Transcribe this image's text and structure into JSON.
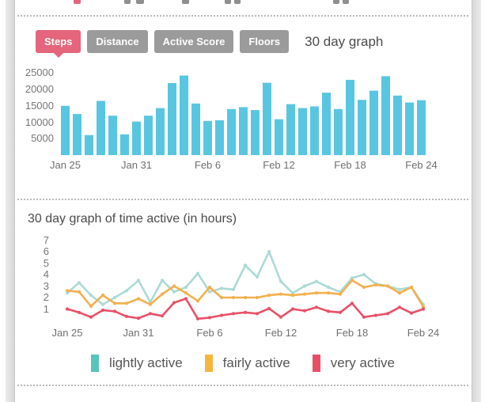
{
  "tabs": {
    "items": [
      {
        "label": "Steps",
        "active": true
      },
      {
        "label": "Distance",
        "active": false
      },
      {
        "label": "Active Score",
        "active": false
      },
      {
        "label": "Floors",
        "active": false
      }
    ],
    "title": "30 day graph",
    "active_color": "#e4657c",
    "inactive_color": "#9b9b9b"
  },
  "chart_data": [
    {
      "type": "bar",
      "title": "30 day graph",
      "ylabel": "",
      "xlabel": "",
      "bar_color": "#58c6e1",
      "ylim": [
        0,
        26000
      ],
      "y_ticks": [
        5000,
        10000,
        15000,
        20000,
        25000
      ],
      "x_tick_labels": [
        "Jan 25",
        "Jan 31",
        "Feb 6",
        "Feb 12",
        "Feb 18",
        "Feb 24"
      ],
      "x_tick_positions": [
        0,
        6,
        12,
        18,
        24,
        30
      ],
      "values": [
        15000,
        12500,
        6100,
        16500,
        12000,
        6300,
        10200,
        12000,
        14300,
        21900,
        24200,
        15700,
        10400,
        10600,
        14000,
        14600,
        13700,
        22000,
        10900,
        15500,
        14300,
        14800,
        19000,
        14000,
        22900,
        16800,
        19600,
        24000,
        18100,
        16000,
        16700
      ]
    },
    {
      "type": "line",
      "title": "30 day graph of time active (in hours)",
      "ylabel": "",
      "xlabel": "",
      "ylim": [
        0,
        7.3
      ],
      "y_ticks": [
        1,
        2,
        3,
        4,
        5,
        6,
        7
      ],
      "x_tick_labels": [
        "Jan 25",
        "Jan 31",
        "Feb 6",
        "Feb 12",
        "Feb 18",
        "Feb 24"
      ],
      "x_tick_positions": [
        0,
        6,
        12,
        18,
        24,
        30
      ],
      "legend_position": "bottom",
      "series": [
        {
          "name": "lightly active",
          "line_color": "#abdad6",
          "legend_color": "#57c5bb",
          "values": [
            2.4,
            3.3,
            2.2,
            1.4,
            2.0,
            2.6,
            3.5,
            1.6,
            3.5,
            2.5,
            2.9,
            4.1,
            2.5,
            2.8,
            2.7,
            4.8,
            3.8,
            6.0,
            3.4,
            2.4,
            3.0,
            3.4,
            2.9,
            2.5,
            3.7,
            4.0,
            3.2,
            3.0,
            2.7,
            2.9,
            1.4
          ]
        },
        {
          "name": "fairly active",
          "line_color": "#f2b04e",
          "legend_color": "#f6b53e",
          "values": [
            2.6,
            2.5,
            1.25,
            2.2,
            1.5,
            1.5,
            1.9,
            1.4,
            2.3,
            3.0,
            2.4,
            1.7,
            2.9,
            2.0,
            2.0,
            2.0,
            2.0,
            2.2,
            2.3,
            2.2,
            2.3,
            2.4,
            2.4,
            2.3,
            3.5,
            2.9,
            3.1,
            3.0,
            2.4,
            2.9,
            1.2
          ]
        },
        {
          "name": "very active",
          "line_color": "#e85068",
          "legend_color": "#e84f66",
          "values": [
            1.0,
            0.7,
            0.3,
            0.9,
            0.8,
            0.35,
            0.2,
            0.6,
            0.4,
            1.55,
            1.9,
            0.15,
            0.25,
            0.45,
            0.6,
            0.7,
            0.6,
            1.05,
            0.3,
            1.0,
            0.85,
            1.15,
            0.8,
            0.7,
            1.5,
            0.3,
            0.45,
            0.6,
            1.15,
            0.65,
            1.0
          ]
        }
      ]
    }
  ]
}
